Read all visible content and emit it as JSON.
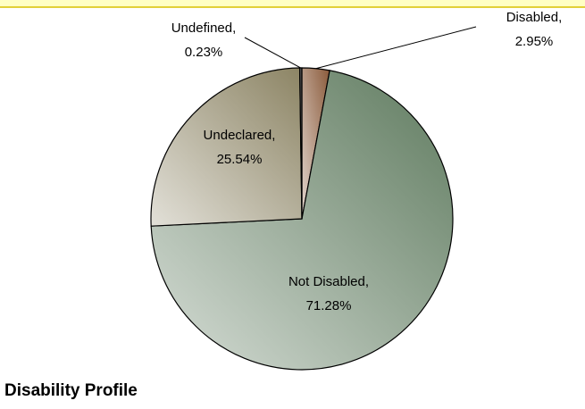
{
  "chart_data": {
    "type": "pie",
    "title": "Disability Profile",
    "categories": [
      "Disabled,",
      "Not Disabled,",
      "Undeclared,",
      "Undefined,"
    ],
    "values": [
      2.95,
      71.28,
      25.54,
      0.23
    ],
    "value_labels": [
      "2.95%",
      "71.28%",
      "25.54%",
      "0.23%"
    ],
    "colors": [
      "#8a5a3a",
      "#5e7a5e",
      "#8c8464",
      "#2a2a2a"
    ]
  }
}
